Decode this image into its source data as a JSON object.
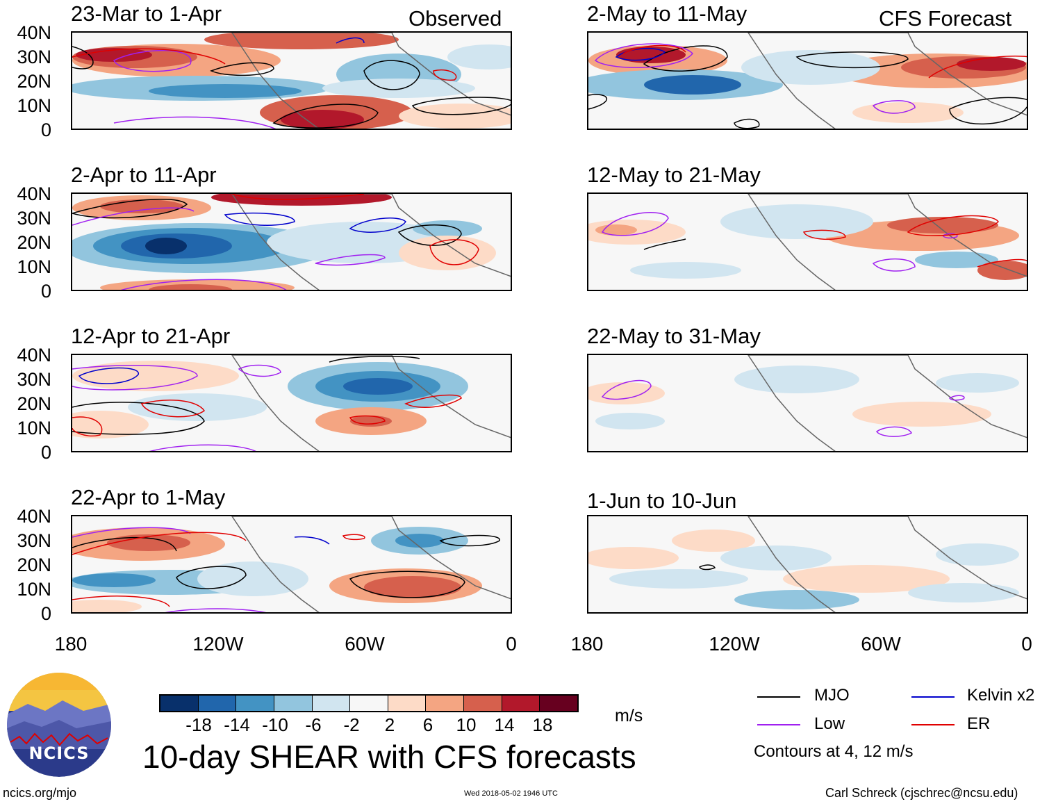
{
  "header": {
    "left_tag": "Observed",
    "right_tag": "CFS Forecast"
  },
  "y_labels": [
    "40N",
    "30N",
    "20N",
    "10N",
    "0"
  ],
  "x_labels": [
    "180",
    "120W",
    "60W",
    "0"
  ],
  "panels": {
    "observed": [
      "23-Mar to 1-Apr",
      "2-Apr to 11-Apr",
      "12-Apr to 21-Apr",
      "22-Apr to 1-May"
    ],
    "forecast": [
      "2-May to 11-May",
      "12-May to 21-May",
      "22-May to 31-May",
      "1-Jun to 10-Jun"
    ]
  },
  "colorbar": {
    "colors": [
      "#08306b",
      "#2166ac",
      "#4393c3",
      "#92c5de",
      "#d1e5f0",
      "#f7f7f7",
      "#fddbc7",
      "#f4a582",
      "#d6604d",
      "#b2182b",
      "#67001f"
    ],
    "labels": [
      "-18",
      "-14",
      "-10",
      "-6",
      "-2",
      "2",
      "6",
      "10",
      "14",
      "18"
    ],
    "units": "m/s"
  },
  "legend": {
    "items": [
      {
        "label": "MJO",
        "color": "#000000"
      },
      {
        "label": "Kelvin x2",
        "color": "#0000cc"
      },
      {
        "label": "Low",
        "color": "#a020f0"
      },
      {
        "label": "ER",
        "color": "#e00000"
      }
    ],
    "note": "Contours at 4, 12 m/s"
  },
  "main_title": "10-day SHEAR with CFS forecasts",
  "footer": {
    "url": "ncics.org/mjo",
    "timestamp": "Wed 2018-05-02 1946 UTC",
    "author": "Carl Schreck (cjschrec@ncsu.edu)"
  },
  "logo_text": "NCICS"
}
